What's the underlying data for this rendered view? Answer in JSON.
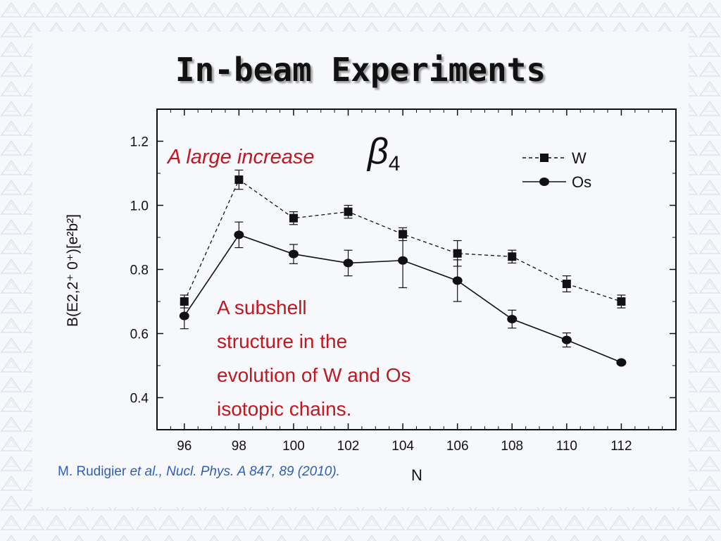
{
  "slide": {
    "title": "In-beam Experiments",
    "citation_author": "M. Rudigier",
    "citation_ref": "et al., Nucl. Phys. A 847, 89 (2010)."
  },
  "colors": {
    "annotation": "#c01820",
    "citation": "#2f5fb5",
    "ink": "#111111"
  },
  "chart_data": {
    "type": "line",
    "xlabel": "N",
    "ylabel": "B(E2,2⁺  0⁺)[e²b²]",
    "x": [
      96,
      98,
      100,
      102,
      104,
      106,
      108,
      110,
      112
    ],
    "xlim": [
      95,
      114
    ],
    "ylim": [
      0.3,
      1.3
    ],
    "x_ticks": [
      96,
      98,
      100,
      102,
      104,
      106,
      108,
      110,
      112
    ],
    "y_ticks": [
      0.4,
      0.6,
      0.8,
      1.0,
      1.2
    ],
    "y_tick_labels": [
      "0.4",
      "0.6",
      "0.8",
      "1.0",
      "1.2"
    ],
    "legend_position": "top-right",
    "series": [
      {
        "name": "W",
        "marker": "square",
        "line": "dashed",
        "values": [
          0.7,
          1.08,
          0.96,
          0.98,
          0.91,
          0.85,
          0.84,
          0.755,
          0.7
        ],
        "errors": [
          0.02,
          0.03,
          0.02,
          0.02,
          0.02,
          0.04,
          0.02,
          0.025,
          0.02
        ]
      },
      {
        "name": "Os",
        "marker": "circle",
        "line": "solid",
        "values": [
          0.655,
          0.908,
          0.848,
          0.82,
          0.828,
          0.765,
          0.645,
          0.58,
          0.51
        ],
        "errors": [
          0.04,
          0.04,
          0.03,
          0.04,
          0.085,
          0.065,
          0.028,
          0.022,
          0.005
        ]
      }
    ],
    "annotations": {
      "beta": "β",
      "beta_sub": "4",
      "increase": "A large increase",
      "subshell": [
        "A subshell",
        "structure in the",
        "evolution of W and Os",
        "isotopic chains."
      ]
    }
  }
}
